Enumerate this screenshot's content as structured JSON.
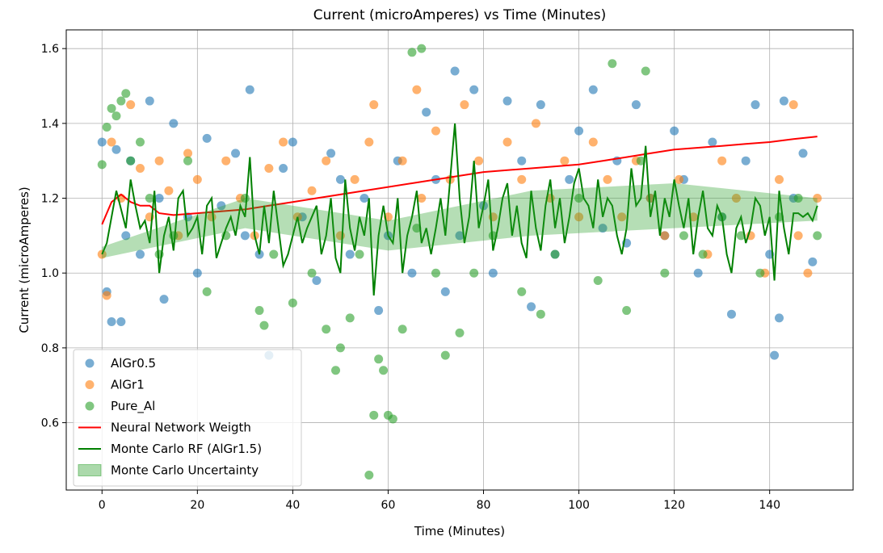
{
  "chart_data": {
    "type": "scatter",
    "title": "Current (microAmperes) vs Time (Minutes)",
    "xlabel": "Time (Minutes)",
    "ylabel": "Current (microAmperes)",
    "xlim": [
      -7.5,
      157.5
    ],
    "ylim": [
      0.42,
      1.65
    ],
    "xticks": [
      0,
      20,
      40,
      60,
      80,
      100,
      120,
      140
    ],
    "yticks": [
      0.6,
      0.8,
      1.0,
      1.2,
      1.4,
      1.6
    ],
    "xtick_labels": [
      "0",
      "20",
      "40",
      "60",
      "80",
      "100",
      "120",
      "140"
    ],
    "ytick_labels": [
      "0.6",
      "0.8",
      "1.0",
      "1.2",
      "1.4",
      "1.6"
    ],
    "grid": true,
    "legend_position": "lower-left",
    "series": [
      {
        "name": "AlGr0.5",
        "kind": "scatter",
        "color": "#1f77b4",
        "x": [
          0,
          1,
          2,
          3,
          4,
          5,
          6,
          8,
          10,
          12,
          13,
          15,
          18,
          20,
          22,
          25,
          28,
          30,
          31,
          33,
          35,
          38,
          40,
          42,
          45,
          48,
          50,
          52,
          55,
          58,
          60,
          62,
          65,
          68,
          70,
          72,
          74,
          75,
          78,
          80,
          82,
          85,
          88,
          90,
          92,
          95,
          98,
          100,
          103,
          105,
          108,
          110,
          112,
          115,
          118,
          120,
          122,
          125,
          128,
          130,
          132,
          135,
          137,
          140,
          141,
          142,
          143,
          145,
          147,
          149
        ],
        "y": [
          1.35,
          0.95,
          0.87,
          1.33,
          0.87,
          1.1,
          1.3,
          1.05,
          1.46,
          1.2,
          0.93,
          1.4,
          1.15,
          1.0,
          1.36,
          1.18,
          1.32,
          1.1,
          1.49,
          1.05,
          0.78,
          1.28,
          1.35,
          1.15,
          0.98,
          1.32,
          1.25,
          1.05,
          1.2,
          0.9,
          1.1,
          1.3,
          1.0,
          1.43,
          1.25,
          0.95,
          1.54,
          1.1,
          1.49,
          1.18,
          1.0,
          1.46,
          1.3,
          0.91,
          1.45,
          1.05,
          1.25,
          1.38,
          1.49,
          1.12,
          1.3,
          1.08,
          1.45,
          1.2,
          1.1,
          1.38,
          1.25,
          1.0,
          1.35,
          1.15,
          0.89,
          1.3,
          1.45,
          1.05,
          0.78,
          0.88,
          1.46,
          1.2,
          1.32,
          1.03
        ]
      },
      {
        "name": "AlGr1",
        "kind": "scatter",
        "color": "#ff7f0e",
        "x": [
          0,
          1,
          2,
          4,
          6,
          8,
          10,
          12,
          14,
          16,
          18,
          20,
          23,
          26,
          29,
          32,
          35,
          38,
          41,
          44,
          47,
          50,
          53,
          56,
          57,
          60,
          63,
          66,
          67,
          70,
          73,
          76,
          79,
          82,
          85,
          88,
          91,
          94,
          97,
          100,
          103,
          106,
          109,
          112,
          115,
          118,
          121,
          124,
          127,
          130,
          133,
          136,
          139,
          142,
          145,
          146,
          148,
          150
        ],
        "y": [
          1.05,
          0.94,
          1.35,
          1.2,
          1.45,
          1.28,
          1.15,
          1.3,
          1.22,
          1.1,
          1.32,
          1.25,
          1.15,
          1.3,
          1.2,
          1.1,
          1.28,
          1.35,
          1.15,
          1.22,
          1.3,
          1.1,
          1.25,
          1.35,
          1.45,
          1.15,
          1.3,
          1.49,
          1.2,
          1.38,
          1.25,
          1.45,
          1.3,
          1.15,
          1.35,
          1.25,
          1.4,
          1.2,
          1.3,
          1.15,
          1.35,
          1.25,
          1.15,
          1.3,
          1.2,
          1.1,
          1.25,
          1.15,
          1.05,
          1.3,
          1.2,
          1.1,
          1.0,
          1.25,
          1.45,
          1.1,
          1.0,
          1.2
        ]
      },
      {
        "name": "Pure_Al",
        "kind": "scatter",
        "color": "#2ca02c",
        "x": [
          0,
          1,
          2,
          3,
          4,
          5,
          6,
          8,
          10,
          12,
          15,
          18,
          22,
          26,
          30,
          33,
          34,
          36,
          40,
          44,
          47,
          49,
          50,
          52,
          54,
          56,
          57,
          58,
          59,
          60,
          61,
          63,
          65,
          66,
          67,
          70,
          72,
          75,
          78,
          82,
          88,
          92,
          95,
          100,
          104,
          107,
          110,
          113,
          114,
          118,
          122,
          126,
          130,
          134,
          138,
          142,
          146,
          150
        ],
        "y": [
          1.29,
          1.39,
          1.44,
          1.42,
          1.46,
          1.48,
          1.3,
          1.35,
          1.2,
          1.05,
          1.1,
          1.3,
          0.95,
          1.1,
          1.2,
          0.9,
          0.86,
          1.05,
          0.92,
          1.0,
          0.85,
          0.74,
          0.8,
          0.88,
          1.05,
          0.46,
          0.62,
          0.77,
          0.74,
          0.62,
          0.61,
          0.85,
          1.59,
          1.12,
          1.6,
          1.0,
          0.78,
          0.84,
          1.0,
          1.1,
          0.95,
          0.89,
          1.05,
          1.2,
          0.98,
          1.56,
          0.9,
          1.3,
          1.54,
          1.0,
          1.1,
          1.05,
          1.15,
          1.1,
          1.0,
          1.15,
          1.2,
          1.1
        ]
      },
      {
        "name": "Neural Network Weigth",
        "kind": "line",
        "color": "#ff0000",
        "x": [
          0,
          2,
          4,
          6,
          8,
          10,
          12,
          15,
          20,
          25,
          30,
          35,
          40,
          45,
          50,
          55,
          60,
          65,
          70,
          75,
          80,
          85,
          90,
          95,
          100,
          105,
          110,
          115,
          120,
          125,
          130,
          135,
          140,
          145,
          150
        ],
        "y": [
          1.13,
          1.19,
          1.21,
          1.19,
          1.18,
          1.18,
          1.16,
          1.155,
          1.16,
          1.165,
          1.17,
          1.18,
          1.19,
          1.2,
          1.21,
          1.22,
          1.23,
          1.24,
          1.25,
          1.26,
          1.27,
          1.275,
          1.28,
          1.285,
          1.29,
          1.3,
          1.31,
          1.32,
          1.33,
          1.335,
          1.34,
          1.345,
          1.35,
          1.358,
          1.365
        ]
      },
      {
        "name": "Monte Carlo RF (AlGr1.5)",
        "kind": "line",
        "color": "#008000",
        "x": [
          0,
          1,
          2,
          3,
          4,
          5,
          6,
          7,
          8,
          9,
          10,
          11,
          12,
          13,
          14,
          15,
          16,
          17,
          18,
          19,
          20,
          21,
          22,
          23,
          24,
          25,
          26,
          27,
          28,
          29,
          30,
          31,
          32,
          33,
          34,
          35,
          36,
          37,
          38,
          39,
          40,
          41,
          42,
          43,
          44,
          45,
          46,
          47,
          48,
          49,
          50,
          51,
          52,
          53,
          54,
          55,
          56,
          57,
          58,
          59,
          60,
          61,
          62,
          63,
          64,
          65,
          66,
          67,
          68,
          69,
          70,
          71,
          72,
          73,
          74,
          75,
          76,
          77,
          78,
          79,
          80,
          81,
          82,
          83,
          84,
          85,
          86,
          87,
          88,
          89,
          90,
          91,
          92,
          93,
          94,
          95,
          96,
          97,
          98,
          99,
          100,
          101,
          102,
          103,
          104,
          105,
          106,
          107,
          108,
          109,
          110,
          111,
          112,
          113,
          114,
          115,
          116,
          117,
          118,
          119,
          120,
          121,
          122,
          123,
          124,
          125,
          126,
          127,
          128,
          129,
          130,
          131,
          132,
          133,
          134,
          135,
          136,
          137,
          138,
          139,
          140,
          141,
          142,
          143,
          144,
          145,
          146,
          147,
          148,
          149,
          150
        ],
        "y": [
          1.05,
          1.08,
          1.15,
          1.22,
          1.17,
          1.12,
          1.25,
          1.18,
          1.12,
          1.14,
          1.08,
          1.22,
          1.0,
          1.1,
          1.15,
          1.06,
          1.2,
          1.22,
          1.1,
          1.12,
          1.15,
          1.05,
          1.18,
          1.2,
          1.04,
          1.08,
          1.12,
          1.15,
          1.1,
          1.18,
          1.15,
          1.31,
          1.1,
          1.05,
          1.18,
          1.08,
          1.22,
          1.12,
          1.02,
          1.05,
          1.1,
          1.15,
          1.08,
          1.12,
          1.15,
          1.18,
          1.05,
          1.1,
          1.2,
          1.04,
          1.0,
          1.25,
          1.12,
          1.06,
          1.15,
          1.1,
          1.2,
          0.94,
          1.1,
          1.18,
          1.1,
          1.08,
          1.2,
          1.0,
          1.1,
          1.15,
          1.22,
          1.08,
          1.12,
          1.05,
          1.12,
          1.2,
          1.1,
          1.25,
          1.4,
          1.2,
          1.08,
          1.15,
          1.3,
          1.12,
          1.18,
          1.25,
          1.06,
          1.12,
          1.2,
          1.24,
          1.1,
          1.18,
          1.08,
          1.04,
          1.22,
          1.12,
          1.06,
          1.18,
          1.25,
          1.12,
          1.2,
          1.08,
          1.15,
          1.24,
          1.28,
          1.2,
          1.18,
          1.12,
          1.25,
          1.15,
          1.2,
          1.18,
          1.1,
          1.05,
          1.12,
          1.28,
          1.18,
          1.2,
          1.34,
          1.15,
          1.22,
          1.1,
          1.2,
          1.15,
          1.25,
          1.18,
          1.12,
          1.2,
          1.05,
          1.15,
          1.22,
          1.12,
          1.1,
          1.18,
          1.15,
          1.05,
          1.0,
          1.12,
          1.15,
          1.08,
          1.12,
          1.2,
          1.18,
          1.1,
          1.15,
          0.98,
          1.22,
          1.12,
          1.05,
          1.16,
          1.16,
          1.15,
          1.16,
          1.14,
          1.18
        ]
      },
      {
        "name": "Monte Carlo Uncertainty",
        "kind": "band",
        "color": "#2ca02c",
        "x": [
          0,
          30,
          60,
          90,
          120,
          150
        ],
        "lower": [
          1.04,
          1.12,
          1.06,
          1.1,
          1.12,
          1.14
        ],
        "upper": [
          1.07,
          1.2,
          1.14,
          1.22,
          1.24,
          1.2
        ]
      }
    ]
  }
}
